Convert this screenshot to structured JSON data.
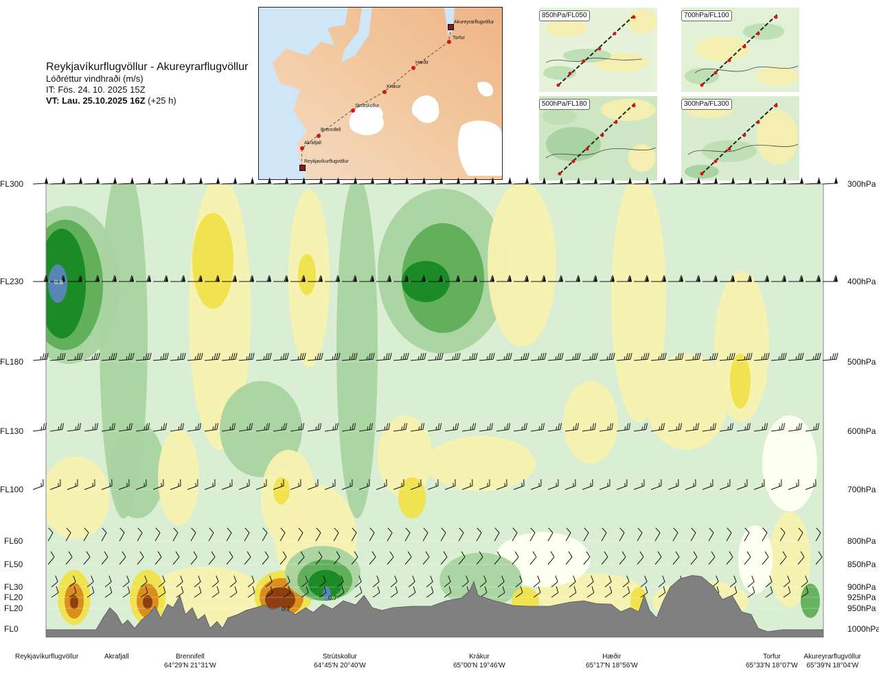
{
  "header": {
    "route": "Reykjavíkurflugvöllur - Akureyrarflugvöllur",
    "parameter": "Lóðréttur vindhraði (m/s)",
    "issue_time": "IT: Fös. 24. 10. 2025 15Z",
    "valid_time_bold": "VT: Lau. 25.10.2025 16Z",
    "valid_time_offset": "(+25 h)"
  },
  "route_map": {
    "waypoints": [
      {
        "name": "Akureyrarflugvöllur",
        "kind": "airport"
      },
      {
        "name": "Torfur",
        "kind": "point"
      },
      {
        "name": "Hæðir",
        "kind": "point"
      },
      {
        "name": "Krákur",
        "kind": "point"
      },
      {
        "name": "Strútskollur",
        "kind": "point"
      },
      {
        "name": "Brennifell",
        "kind": "point"
      },
      {
        "name": "Akrafjall",
        "kind": "point"
      },
      {
        "name": "Reykjavíkurflugvöllur",
        "kind": "airport"
      }
    ]
  },
  "level_maps": [
    {
      "label": "850hPa/FL050"
    },
    {
      "label": "700hPa/FL100"
    },
    {
      "label": "500hPa/FL180"
    },
    {
      "label": "300hPa/FL300"
    }
  ],
  "chart_data": {
    "type": "heatmap",
    "title": "Lóðréttur vindhraði (m/s)",
    "left_axis_labels": [
      "FL300",
      "FL230",
      "FL180",
      "FL130",
      "FL100",
      "FL60",
      "FL50",
      "FL30",
      "FL20",
      "FL20",
      "FL0"
    ],
    "right_axis_labels": [
      "300hPa",
      "400hPa",
      "500hPa",
      "600hPa",
      "700hPa",
      "800hPa",
      "850hPa",
      "900hPa",
      "925hPa",
      "950hPa",
      "1000hPa"
    ],
    "pressure_levels_hpa": [
      300,
      400,
      500,
      600,
      700,
      800,
      850,
      900,
      925,
      950,
      1000
    ],
    "bottom_labels": [
      {
        "name": "Reykjavíkurflugvöllur",
        "coords": ""
      },
      {
        "name": "Akrafjall",
        "coords": ""
      },
      {
        "name": "Brennifell",
        "coords": "64°29'N 21°31'W"
      },
      {
        "name": "Strútskollur",
        "coords": "64°45'N 20°40'W"
      },
      {
        "name": "Krákur",
        "coords": "65°00'N 19°46'W"
      },
      {
        "name": "Hæðir",
        "coords": "65°17'N 18°56'W"
      },
      {
        "name": "Torfur",
        "coords": "65°33'N 18°07'W"
      },
      {
        "name": "Akureyrarflugvöllur",
        "coords": "65°39'N 18°04'W"
      }
    ],
    "annotations": [
      "0.8",
      "0.7",
      "0.7"
    ],
    "colors": {
      "strong_down": "#8b3a10",
      "down_mid": "#d88a1a",
      "down_weak": "#f0e24a",
      "down_faint": "#f8f1b0",
      "neutral": "#fffff2",
      "up_faint": "#d9eed2",
      "up_weak": "#a9d3a0",
      "up_mid": "#5fae58",
      "up_strong": "#178a22",
      "up_max": "#5a86b8",
      "terrain": "#808080"
    }
  }
}
